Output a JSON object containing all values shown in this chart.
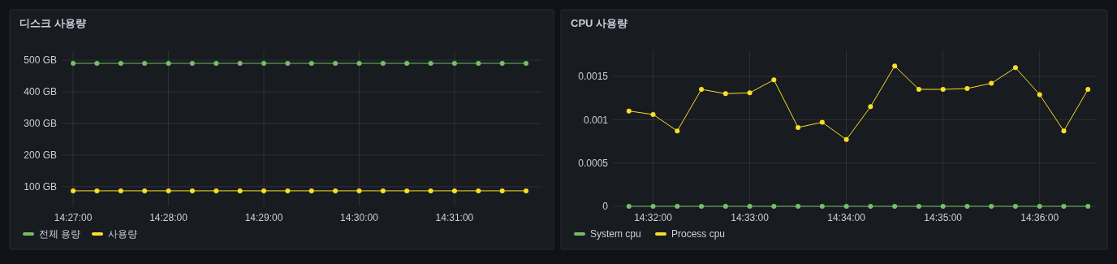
{
  "chart_data": [
    {
      "type": "line",
      "title": "디스크 사용량",
      "x": [
        14.45,
        14.454167,
        14.458333,
        14.4625,
        14.466667,
        14.470833,
        14.475,
        14.479167,
        14.483333,
        14.4875,
        14.491667,
        14.495833,
        14.5,
        14.504167,
        14.508333,
        14.5125,
        14.516667,
        14.520833,
        14.525,
        14.529167
      ],
      "series": [
        {
          "name": "전체 용량",
          "color": "#73bf69",
          "values": [
            490,
            490,
            490,
            490,
            490,
            490,
            490,
            490,
            490,
            490,
            490,
            490,
            490,
            490,
            490,
            490,
            490,
            490,
            490,
            490
          ]
        },
        {
          "name": "사용량",
          "color": "#fade2a",
          "values": [
            87,
            87,
            87,
            87,
            87,
            87,
            87,
            87,
            87,
            87,
            87,
            87,
            87,
            87,
            87,
            87,
            87,
            87,
            87,
            87
          ]
        }
      ],
      "xlim": [
        14.448,
        14.532
      ],
      "xticks": [
        {
          "value": 14.45,
          "label": "14:27:00"
        },
        {
          "value": 14.466667,
          "label": "14:28:00"
        },
        {
          "value": 14.483333,
          "label": "14:29:00"
        },
        {
          "value": 14.5,
          "label": "14:30:00"
        },
        {
          "value": 14.516667,
          "label": "14:31:00"
        }
      ],
      "ylim": [
        38,
        531
      ],
      "yticks": [
        {
          "value": 100,
          "label": "100 GB"
        },
        {
          "value": 200,
          "label": "200 GB"
        },
        {
          "value": 300,
          "label": "300 GB"
        },
        {
          "value": 400,
          "label": "400 GB"
        },
        {
          "value": 500,
          "label": "500 GB"
        }
      ],
      "grid": true,
      "legend": "bottom",
      "marker": "circle",
      "line_style": "solid"
    },
    {
      "type": "line",
      "title": "CPU 사용량",
      "x": [
        14.529167,
        14.533333,
        14.5375,
        14.541667,
        14.545833,
        14.55,
        14.554167,
        14.558333,
        14.5625,
        14.566667,
        14.570833,
        14.575,
        14.579167,
        14.583333,
        14.5875,
        14.591667,
        14.595833,
        14.6,
        14.604167,
        14.608333
      ],
      "series": [
        {
          "name": "System cpu",
          "color": "#73bf69",
          "values": [
            0,
            0,
            0,
            0,
            0,
            0,
            0,
            0,
            0,
            0,
            0,
            0,
            0,
            0,
            0,
            0,
            0,
            0,
            0,
            0
          ]
        },
        {
          "name": "Process cpu",
          "color": "#fade2a",
          "values": [
            0.0011,
            0.00106,
            0.00087,
            0.00135,
            0.0013,
            0.00131,
            0.00146,
            0.00091,
            0.00097,
            0.00077,
            0.00115,
            0.00162,
            0.00135,
            0.00135,
            0.00136,
            0.00142,
            0.0016,
            0.00129,
            0.00087,
            0.00135
          ]
        }
      ],
      "xlim": [
        14.5264,
        14.6097
      ],
      "xticks": [
        {
          "value": 14.533333,
          "label": "14:32:00"
        },
        {
          "value": 14.55,
          "label": "14:33:00"
        },
        {
          "value": 14.566667,
          "label": "14:34:00"
        },
        {
          "value": 14.583333,
          "label": "14:35:00"
        },
        {
          "value": 14.6,
          "label": "14:36:00"
        }
      ],
      "ylim": [
        0,
        0.0018
      ],
      "yticks": [
        0,
        0.0005,
        0.001,
        0.0015
      ],
      "grid": true,
      "legend": "bottom",
      "marker": "circle",
      "line_style": "solid"
    }
  ]
}
